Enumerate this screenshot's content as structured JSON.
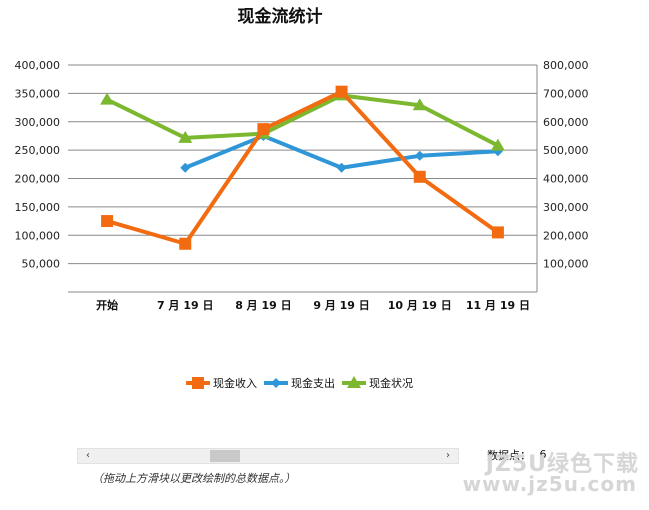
{
  "chart_data": {
    "type": "line",
    "title": "现金流统计",
    "categories": [
      "开始",
      "7 月 19 日",
      "8 月 19 日",
      "9 月 19 日",
      "10 月 19 日",
      "11 月 19 日"
    ],
    "series": [
      {
        "name": "现金收入",
        "axis": "left",
        "color": "#f26b10",
        "marker": "square",
        "values": [
          125000,
          85000,
          287000,
          353000,
          203000,
          105000
        ]
      },
      {
        "name": "现金支出",
        "axis": "left",
        "color": "#2f96d8",
        "marker": "diamond",
        "values": [
          null,
          219000,
          275000,
          219000,
          240000,
          248000
        ]
      },
      {
        "name": "现金状况",
        "axis": "right",
        "color": "#7cb82f",
        "marker": "triangle",
        "values": [
          678000,
          543000,
          558000,
          693000,
          658000,
          516000
        ]
      }
    ],
    "y_left": {
      "min": 0,
      "max": 400000,
      "tick_labels": [
        "400,000",
        "350,000",
        "300,000",
        "250,000",
        "200,000",
        "150,000",
        "100,000",
        "50,000"
      ]
    },
    "y_right": {
      "min": 0,
      "max": 800000,
      "tick_labels": [
        "800,000",
        "700,000",
        "600,000",
        "500,000",
        "400,000",
        "300,000",
        "200,000",
        "100,000"
      ]
    },
    "grid": true,
    "legend": "bottom"
  },
  "controls": {
    "scroll_left_glyph": "‹",
    "scroll_right_glyph": "›",
    "points_label": "数据点：",
    "points_value": "6",
    "hint": "（拖动上方滑块以更改绘制的总数据点。）"
  },
  "watermark": {
    "top": "JZ5U绿色下载",
    "bottom": "www.jz5u.com"
  }
}
